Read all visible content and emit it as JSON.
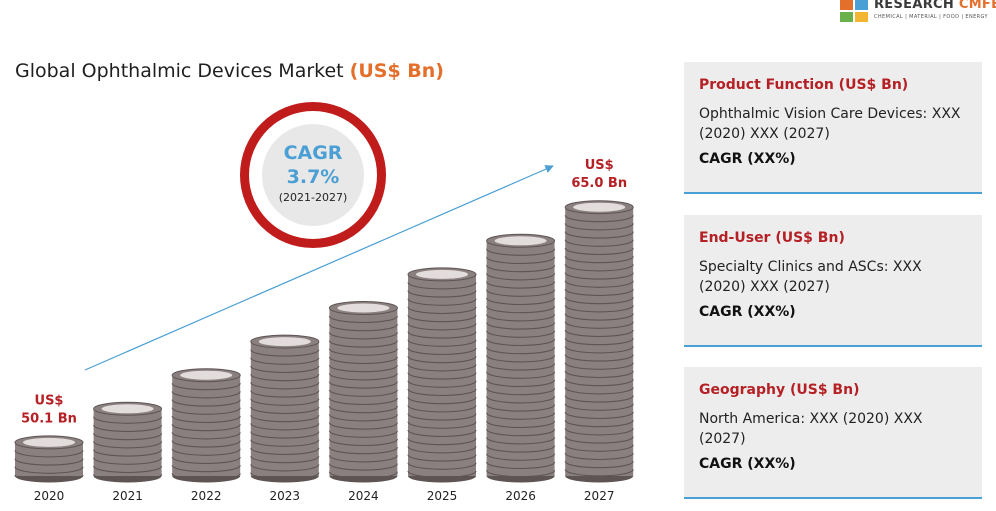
{
  "brand": {
    "name_main": "RESEARCH ",
    "name_accent": "CMFE",
    "tagline": "CHEMICAL | MATERIAL | FOOD | ENERGY",
    "block_colors": [
      "#e46f2b",
      "#4a9fd4",
      "#6ab04c",
      "#f2b632"
    ]
  },
  "chart_data": {
    "type": "bar",
    "title": "Global Ophthalmic Devices Market ",
    "title_unit": "(US$ Bn)",
    "categories": [
      "2020",
      "2021",
      "2022",
      "2023",
      "2024",
      "2025",
      "2026",
      "2027"
    ],
    "values": [
      50.1,
      null,
      null,
      null,
      null,
      null,
      null,
      65.0
    ],
    "annotations": [
      {
        "category": "2020",
        "line1": "US$",
        "line2": "50.1 Bn"
      },
      {
        "category": "2027",
        "line1": "US$",
        "line2": "65.0 Bn"
      }
    ],
    "stack_heights_relative": [
      1,
      2,
      3,
      4,
      5,
      6,
      7,
      8
    ],
    "grid": false,
    "legend": "none"
  },
  "cagr": {
    "label": "CAGR",
    "value": "3.7%",
    "period": "(2021-2027)"
  },
  "panels": [
    {
      "heading": "Product Function (US$ Bn)",
      "text": "Ophthalmic Vision Care Devices: XXX (2020) XXX (2027)",
      "cagr": "CAGR (XX%)"
    },
    {
      "heading": "End-User (US$ Bn)",
      "text": "Specialty Clinics and ASCs: XXX (2020) XXX (2027)",
      "cagr": "CAGR (XX%)"
    },
    {
      "heading": "Geography (US$ Bn)",
      "text": "North America: XXX (2020) XXX (2027)",
      "cagr": "CAGR (XX%)"
    }
  ],
  "colors": {
    "coin_body": "#8b8080",
    "coin_edge": "#5e5454",
    "coin_top": "#e2dcdc",
    "arrow": "#4a9fd4",
    "annotation": "#b52025",
    "ring": "#c01c1c",
    "cagr_text": "#4a9fd4"
  }
}
